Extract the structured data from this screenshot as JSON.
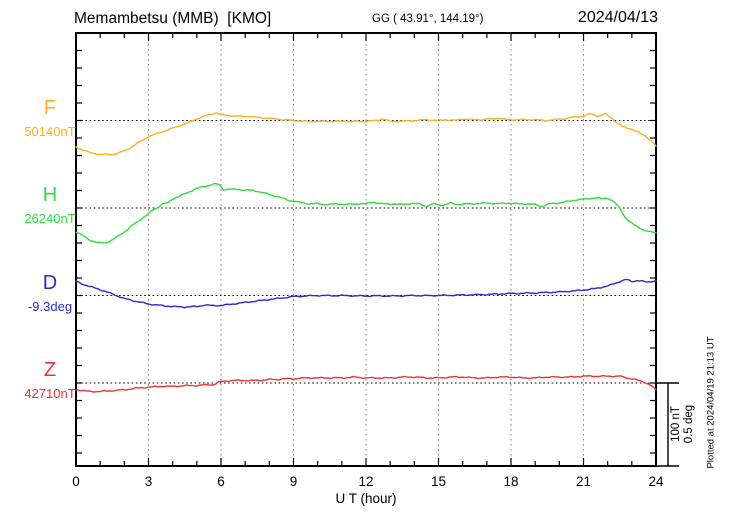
{
  "header": {
    "station_title": "Memambetsu (MMB)  [KMO]",
    "gg_coords": "GG ( 43.91°, 144.19°)",
    "date": "2024/04/13"
  },
  "footer": {
    "xaxis_label": "U T (hour)"
  },
  "right_side": {
    "scale_label_nt": "100 nT",
    "scale_label_deg": "0.5 deg",
    "plotted_at": "Plotted at 2024/04/19 21:13 UT"
  },
  "colors": {
    "F": "#ffaf1e",
    "H": "#2cdd3c",
    "D": "#2a2ad0",
    "Z": "#f03232",
    "frame": "#000000",
    "gridline": "#8c8c8c"
  },
  "chart_data": {
    "type": "line",
    "title": "Memambetsu (MMB) [KMO] magnetogram 2024/04/13",
    "xlabel": "U T (hour)",
    "xlim": [
      0,
      24
    ],
    "x_ticks": [
      0,
      3,
      6,
      9,
      12,
      15,
      18,
      21,
      24
    ],
    "x_tick_labels": [
      "0",
      "3",
      "6",
      "9",
      "12",
      "15",
      "18",
      "21",
      "24"
    ],
    "x_minor_step_hours": 1,
    "grid": "vertical-dotted-at-3h, dotted-baseline-per-component",
    "scale_per_division": {
      "nT": 100,
      "deg": 0.5
    },
    "series": [
      {
        "name": "F",
        "unit": "nT",
        "color": "#ffaf1e",
        "baseline_value": 50140,
        "value_label": "50140nT",
        "points": [
          [
            0,
            50109
          ],
          [
            0.3,
            50105
          ],
          [
            0.6,
            50102
          ],
          [
            1,
            50100
          ],
          [
            1.5,
            50100
          ],
          [
            1.8,
            50102
          ],
          [
            2.2,
            50107
          ],
          [
            2.6,
            50114
          ],
          [
            3,
            50121
          ],
          [
            3.4,
            50125
          ],
          [
            3.8,
            50129
          ],
          [
            4.2,
            50133
          ],
          [
            4.6,
            50137
          ],
          [
            5,
            50142
          ],
          [
            5.4,
            50146
          ],
          [
            5.8,
            50149
          ],
          [
            6,
            50147
          ],
          [
            6.3,
            50146
          ],
          [
            6.6,
            50145
          ],
          [
            7,
            50145
          ],
          [
            7.4,
            50144
          ],
          [
            7.8,
            50143
          ],
          [
            8.2,
            50142
          ],
          [
            8.6,
            50141
          ],
          [
            9,
            50140
          ],
          [
            9.5,
            50139
          ],
          [
            10,
            50139
          ],
          [
            10.5,
            50139
          ],
          [
            11,
            50139
          ],
          [
            11.5,
            50139
          ],
          [
            12,
            50139
          ],
          [
            12.4,
            50140
          ],
          [
            12.7,
            50142
          ],
          [
            13,
            50139
          ],
          [
            13.5,
            50139
          ],
          [
            14,
            50140
          ],
          [
            14.5,
            50141
          ],
          [
            15,
            50140
          ],
          [
            15.3,
            50141
          ],
          [
            15.7,
            50140
          ],
          [
            16,
            50142
          ],
          [
            16.4,
            50141
          ],
          [
            16.8,
            50141
          ],
          [
            17.2,
            50142
          ],
          [
            17.5,
            50143
          ],
          [
            17.8,
            50141
          ],
          [
            18.2,
            50141
          ],
          [
            18.6,
            50141
          ],
          [
            19,
            50141
          ],
          [
            19.4,
            50140
          ],
          [
            19.8,
            50141
          ],
          [
            20.2,
            50142
          ],
          [
            20.6,
            50144
          ],
          [
            21,
            50145
          ],
          [
            21.3,
            50148
          ],
          [
            21.6,
            50145
          ],
          [
            21.9,
            50148
          ],
          [
            22,
            50146
          ],
          [
            22.2,
            50142
          ],
          [
            22.4,
            50137
          ],
          [
            22.6,
            50133
          ],
          [
            22.8,
            50131
          ],
          [
            23,
            50130
          ],
          [
            23.2,
            50127
          ],
          [
            23.4,
            50124
          ],
          [
            23.6,
            50121
          ],
          [
            23.8,
            50116
          ],
          [
            24,
            50110
          ]
        ]
      },
      {
        "name": "H",
        "unit": "nT",
        "color": "#2cdd3c",
        "baseline_value": 26240,
        "value_label": "26240nT",
        "points": [
          [
            0,
            26212
          ],
          [
            0.3,
            26207
          ],
          [
            0.6,
            26202
          ],
          [
            0.9,
            26199
          ],
          [
            1.2,
            26199
          ],
          [
            1.5,
            26202
          ],
          [
            1.8,
            26208
          ],
          [
            2.1,
            26214
          ],
          [
            2.4,
            26221
          ],
          [
            2.7,
            26227
          ],
          [
            3,
            26233
          ],
          [
            3.2,
            26238
          ],
          [
            3.4,
            26241
          ],
          [
            3.6,
            26245
          ],
          [
            3.8,
            26246
          ],
          [
            4,
            26251
          ],
          [
            4.3,
            26254
          ],
          [
            4.6,
            26258
          ],
          [
            5,
            26263
          ],
          [
            5.4,
            26266
          ],
          [
            5.7,
            26268
          ],
          [
            5.9,
            26268
          ],
          [
            6.1,
            26262
          ],
          [
            6.4,
            26262
          ],
          [
            6.7,
            26262
          ],
          [
            7,
            26261
          ],
          [
            7.3,
            26261
          ],
          [
            7.6,
            26259
          ],
          [
            8,
            26256
          ],
          [
            8.4,
            26253
          ],
          [
            8.8,
            26249
          ],
          [
            9.2,
            26247
          ],
          [
            9.6,
            26245
          ],
          [
            10,
            26245
          ],
          [
            10.4,
            26244
          ],
          [
            10.8,
            26245
          ],
          [
            11.2,
            26244
          ],
          [
            11.6,
            26245
          ],
          [
            12,
            26245
          ],
          [
            12.3,
            26247
          ],
          [
            12.6,
            26245
          ],
          [
            13,
            26245
          ],
          [
            13.4,
            26244
          ],
          [
            13.8,
            26245
          ],
          [
            14.2,
            26245
          ],
          [
            14.5,
            26242
          ],
          [
            14.8,
            26245
          ],
          [
            15.2,
            26243
          ],
          [
            15.5,
            26246
          ],
          [
            15.8,
            26244
          ],
          [
            16.2,
            26245
          ],
          [
            16.6,
            26245
          ],
          [
            17,
            26246
          ],
          [
            17.4,
            26245
          ],
          [
            17.8,
            26246
          ],
          [
            18.2,
            26245
          ],
          [
            18.6,
            26245
          ],
          [
            19,
            26244
          ],
          [
            19.3,
            26242
          ],
          [
            19.6,
            26245
          ],
          [
            20,
            26246
          ],
          [
            20.4,
            26248
          ],
          [
            20.8,
            26250
          ],
          [
            21.2,
            26251
          ],
          [
            21.5,
            26252
          ],
          [
            21.8,
            26251
          ],
          [
            22,
            26252
          ],
          [
            22.1,
            26250
          ],
          [
            22.3,
            26246
          ],
          [
            22.5,
            26240
          ],
          [
            22.7,
            26230
          ],
          [
            22.9,
            26224
          ],
          [
            23.1,
            26220
          ],
          [
            23.3,
            26217
          ],
          [
            23.5,
            26214
          ],
          [
            23.7,
            26212
          ],
          [
            24,
            26211
          ]
        ]
      },
      {
        "name": "D",
        "unit": "deg",
        "color": "#2a2ad0",
        "baseline_value": -9.3,
        "value_label": "-9.3deg",
        "points": [
          [
            0,
            -9.218
          ],
          [
            0.5,
            -9.244
          ],
          [
            1,
            -9.265
          ],
          [
            1.5,
            -9.291
          ],
          [
            2,
            -9.318
          ],
          [
            2.5,
            -9.335
          ],
          [
            3,
            -9.35
          ],
          [
            3.5,
            -9.359
          ],
          [
            4,
            -9.365
          ],
          [
            4.5,
            -9.368
          ],
          [
            5,
            -9.365
          ],
          [
            5.3,
            -9.356
          ],
          [
            5.6,
            -9.359
          ],
          [
            6,
            -9.359
          ],
          [
            6.5,
            -9.35
          ],
          [
            7,
            -9.341
          ],
          [
            7.5,
            -9.332
          ],
          [
            8,
            -9.324
          ],
          [
            8.5,
            -9.315
          ],
          [
            9,
            -9.306
          ],
          [
            9.5,
            -9.303
          ],
          [
            10,
            -9.3
          ],
          [
            10.5,
            -9.301
          ],
          [
            11,
            -9.3
          ],
          [
            11.5,
            -9.302
          ],
          [
            12,
            -9.303
          ],
          [
            12.5,
            -9.302
          ],
          [
            13,
            -9.303
          ],
          [
            13.5,
            -9.302
          ],
          [
            14,
            -9.3
          ],
          [
            14.5,
            -9.301
          ],
          [
            15,
            -9.3
          ],
          [
            15.5,
            -9.299
          ],
          [
            16,
            -9.297
          ],
          [
            16.5,
            -9.296
          ],
          [
            17,
            -9.294
          ],
          [
            17.5,
            -9.291
          ],
          [
            18,
            -9.288
          ],
          [
            18.5,
            -9.287
          ],
          [
            19,
            -9.285
          ],
          [
            19.5,
            -9.282
          ],
          [
            20,
            -9.279
          ],
          [
            20.5,
            -9.274
          ],
          [
            21,
            -9.268
          ],
          [
            21.5,
            -9.259
          ],
          [
            22,
            -9.244
          ],
          [
            22.3,
            -9.229
          ],
          [
            22.6,
            -9.212
          ],
          [
            22.8,
            -9.206
          ],
          [
            23,
            -9.218
          ],
          [
            23.2,
            -9.212
          ],
          [
            23.4,
            -9.215
          ],
          [
            23.6,
            -9.221
          ],
          [
            23.8,
            -9.218
          ],
          [
            24,
            -9.212
          ]
        ]
      },
      {
        "name": "Z",
        "unit": "nT",
        "color": "#f03232",
        "baseline_value": 42710,
        "value_label": "42710nT",
        "points": [
          [
            0,
            42702
          ],
          [
            0.3,
            42701
          ],
          [
            0.6,
            42700
          ],
          [
            1,
            42700
          ],
          [
            1.5,
            42701
          ],
          [
            2,
            42702
          ],
          [
            2.5,
            42704
          ],
          [
            3,
            42705
          ],
          [
            3.5,
            42706
          ],
          [
            4,
            42706
          ],
          [
            4.5,
            42707
          ],
          [
            5,
            42707
          ],
          [
            5.5,
            42708
          ],
          [
            5.7,
            42708
          ],
          [
            5.9,
            42711
          ],
          [
            6.1,
            42712
          ],
          [
            6.5,
            42713
          ],
          [
            7,
            42713
          ],
          [
            7.5,
            42713
          ],
          [
            8,
            42714
          ],
          [
            8.3,
            42714
          ],
          [
            8.6,
            42715
          ],
          [
            9,
            42715
          ],
          [
            9.5,
            42716
          ],
          [
            10,
            42716
          ],
          [
            10.5,
            42716
          ],
          [
            11,
            42716
          ],
          [
            11.5,
            42717
          ],
          [
            12,
            42716
          ],
          [
            12.5,
            42716
          ],
          [
            13,
            42716
          ],
          [
            13.5,
            42717
          ],
          [
            14,
            42717
          ],
          [
            14.5,
            42716
          ],
          [
            15,
            42716
          ],
          [
            15.5,
            42717
          ],
          [
            16,
            42717
          ],
          [
            16.5,
            42716
          ],
          [
            17,
            42716
          ],
          [
            17.5,
            42717
          ],
          [
            18,
            42717
          ],
          [
            18.5,
            42716
          ],
          [
            19,
            42716
          ],
          [
            19.5,
            42717
          ],
          [
            20,
            42717
          ],
          [
            20.5,
            42717
          ],
          [
            21,
            42718
          ],
          [
            21.5,
            42718
          ],
          [
            22,
            42718
          ],
          [
            22.3,
            42718
          ],
          [
            22.5,
            42718
          ],
          [
            22.8,
            42716
          ],
          [
            23,
            42715
          ],
          [
            23.3,
            42713
          ],
          [
            23.6,
            42710
          ],
          [
            23.8,
            42707
          ],
          [
            24,
            42702
          ]
        ]
      }
    ]
  }
}
